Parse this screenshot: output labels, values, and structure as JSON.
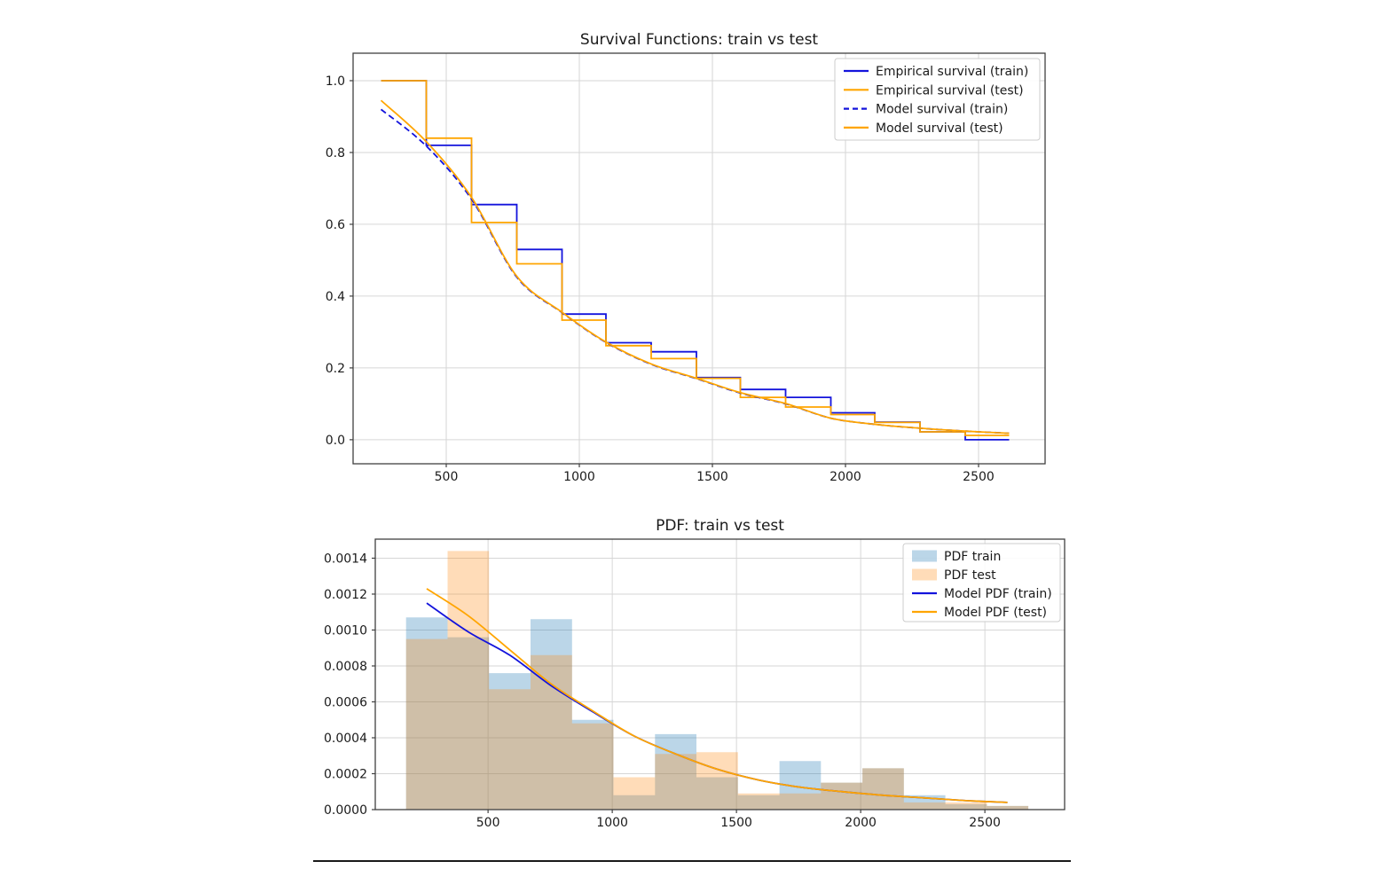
{
  "figure": {
    "background": "#ffffff",
    "separator": {
      "present": true
    }
  },
  "colors": {
    "train_line": "#1414dc",
    "test_line": "#ffa500",
    "hist_train_fill": "rgba(31,119,180,0.30)",
    "hist_test_fill": "rgba(255,140,20,0.30)",
    "grid": "#d6d6d6",
    "spine": "#404040",
    "text": "#1a1a1a"
  },
  "chart_data": [
    {
      "id": "survival",
      "type": "line",
      "title": "Survival Functions: train vs test",
      "xlabel": "",
      "ylabel": "",
      "xlim": [
        150,
        2750
      ],
      "ylim": [
        -0.067,
        1.0765
      ],
      "xticks": [
        500,
        1000,
        1500,
        2000,
        2500
      ],
      "xtick_labels": [
        "500",
        "1000",
        "1500",
        "2000",
        "2500"
      ],
      "yticks": [
        0.0,
        0.2,
        0.4,
        0.6,
        0.8,
        1.0
      ],
      "ytick_labels": [
        "0.0",
        "0.2",
        "0.4",
        "0.6",
        "0.8",
        "1.0"
      ],
      "grid": true,
      "legend_position": "upper right",
      "step_edges": [
        255,
        425,
        595,
        765,
        935,
        1100,
        1270,
        1440,
        1605,
        1775,
        1945,
        2110,
        2280,
        2450,
        2615
      ],
      "series": [
        {
          "name": "Empirical survival (train)",
          "kind": "step",
          "color": "#1414dc",
          "dash": "",
          "values": [
            1.0,
            0.82,
            0.655,
            0.53,
            0.35,
            0.27,
            0.245,
            0.173,
            0.14,
            0.118,
            0.075,
            0.049,
            0.022,
            0.0
          ]
        },
        {
          "name": "Empirical survival (test)",
          "kind": "step",
          "color": "#ffa500",
          "dash": "",
          "values": [
            1.0,
            0.84,
            0.605,
            0.49,
            0.333,
            0.262,
            0.226,
            0.171,
            0.118,
            0.091,
            0.07,
            0.048,
            0.022,
            0.012
          ]
        },
        {
          "name": "Model survival (train)",
          "kind": "line",
          "color": "#1414dc",
          "dash": "7 4",
          "x": [
            255,
            425,
            595,
            765,
            935,
            1100,
            1270,
            1440,
            1605,
            1775,
            1945,
            2110,
            2280,
            2450,
            2615
          ],
          "y": [
            0.92,
            0.818,
            0.67,
            0.453,
            0.354,
            0.271,
            0.21,
            0.17,
            0.13,
            0.1,
            0.06,
            0.043,
            0.032,
            0.024,
            0.018
          ]
        },
        {
          "name": "Model survival (test)",
          "kind": "line",
          "color": "#ffa500",
          "dash": "",
          "x": [
            255,
            425,
            595,
            765,
            935,
            1100,
            1270,
            1440,
            1605,
            1775,
            1945,
            2110,
            2280,
            2450,
            2615
          ],
          "y": [
            0.945,
            0.83,
            0.675,
            0.455,
            0.355,
            0.272,
            0.211,
            0.171,
            0.131,
            0.101,
            0.06,
            0.043,
            0.032,
            0.024,
            0.018
          ]
        }
      ]
    },
    {
      "id": "pdf",
      "type": "bar",
      "title": "PDF: train vs test",
      "xlabel": "",
      "ylabel": "",
      "xlim": [
        46,
        2821
      ],
      "ylim": [
        0,
        0.001506
      ],
      "xticks": [
        500,
        1000,
        1500,
        2000,
        2500
      ],
      "xtick_labels": [
        "500",
        "1000",
        "1500",
        "2000",
        "2500"
      ],
      "yticks": [
        0.0,
        0.0002,
        0.0004,
        0.0006,
        0.0008,
        0.001,
        0.0012,
        0.0014
      ],
      "ytick_labels": [
        "0.0000",
        "0.0002",
        "0.0004",
        "0.0006",
        "0.0008",
        "0.0010",
        "0.0012",
        "0.0014"
      ],
      "grid": true,
      "legend_position": "upper right",
      "bin_edges": [
        170,
        337,
        504,
        671,
        838,
        1005,
        1172,
        1339,
        1506,
        1673,
        1840,
        2007,
        2174,
        2341,
        2508,
        2675
      ],
      "series": [
        {
          "name": "PDF train",
          "kind": "hist",
          "fill": "rgba(31,119,180,0.30)",
          "values": [
            0.00107,
            0.00096,
            0.00076,
            0.00106,
            0.0005,
            8e-05,
            0.00042,
            0.00018,
            8e-05,
            0.00027,
            0.00015,
            0.00023,
            8e-05,
            3e-05,
            2e-05
          ]
        },
        {
          "name": "PDF test",
          "kind": "hist",
          "fill": "rgba(255,140,20,0.30)",
          "values": [
            0.00095,
            0.00144,
            0.00067,
            0.00086,
            0.00048,
            0.00018,
            0.00031,
            0.00032,
            9e-05,
            9e-05,
            0.00015,
            0.00023,
            4e-05,
            4e-05,
            2e-05
          ]
        },
        {
          "name": "Model PDF (train)",
          "kind": "line",
          "color": "#1414dc",
          "dash": "",
          "x": [
            253,
            420,
            587,
            754,
            921,
            1088,
            1255,
            1422,
            1589,
            1756,
            1923,
            2090,
            2257,
            2424,
            2591
          ],
          "y": [
            0.00115,
            0.00099,
            0.00086,
            0.00069,
            0.000545,
            0.00041,
            0.00031,
            0.000225,
            0.000165,
            0.000125,
            0.0001,
            8e-05,
            6.5e-05,
            5e-05,
            4e-05
          ]
        },
        {
          "name": "Model PDF (test)",
          "kind": "line",
          "color": "#ffa500",
          "dash": "",
          "x": [
            253,
            420,
            587,
            754,
            921,
            1088,
            1255,
            1422,
            1589,
            1756,
            1923,
            2090,
            2257,
            2424,
            2591
          ],
          "y": [
            0.00123,
            0.00108,
            0.00089,
            0.0007,
            0.00055,
            0.00041,
            0.00031,
            0.000225,
            0.000165,
            0.000125,
            0.0001,
            8e-05,
            6.5e-05,
            5e-05,
            4e-05
          ]
        }
      ]
    }
  ]
}
